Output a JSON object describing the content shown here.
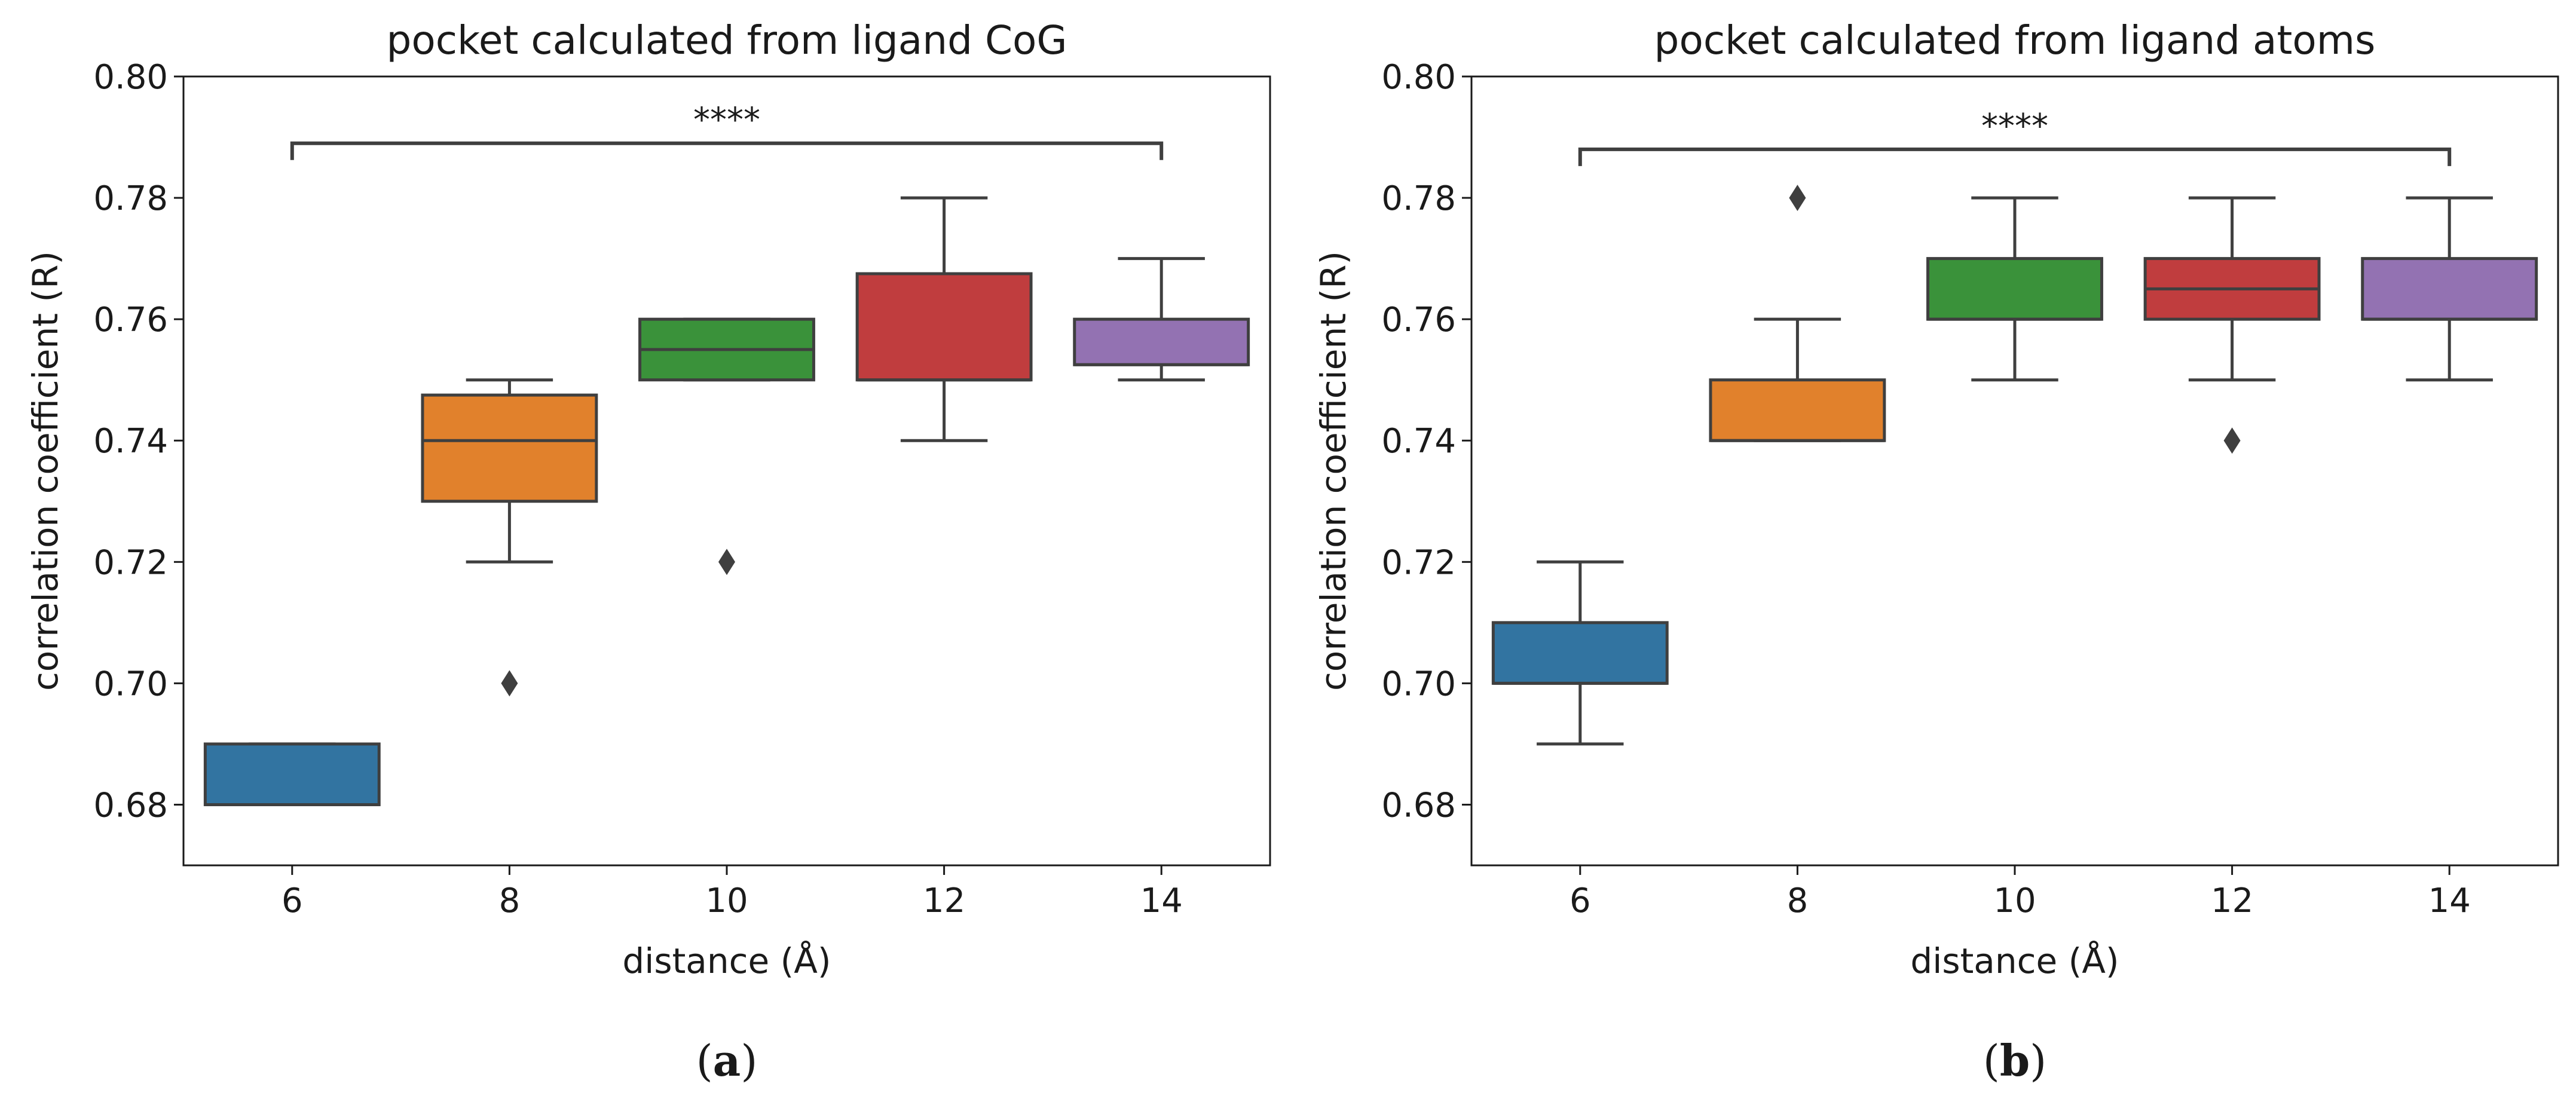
{
  "chart_data": [
    {
      "type": "box",
      "title": "pocket calculated from ligand CoG",
      "xlabel": "distance (Å)",
      "ylabel": "correlation coefficient (R)",
      "ylim": [
        0.67,
        0.8
      ],
      "yticks": [
        "0.68",
        "0.70",
        "0.72",
        "0.74",
        "0.76",
        "0.78",
        "0.80"
      ],
      "yticks_values": [
        0.68,
        0.7,
        0.72,
        0.74,
        0.76,
        0.78,
        0.8
      ],
      "categories": [
        "6",
        "8",
        "10",
        "12",
        "14"
      ],
      "boxes": [
        {
          "category": "6",
          "q1": 0.68,
          "median": 0.68,
          "q3": 0.69,
          "whisker_low": 0.68,
          "whisker_high": 0.69,
          "outliers": [],
          "color": "#3274a1"
        },
        {
          "category": "8",
          "q1": 0.73,
          "median": 0.74,
          "q3": 0.7475,
          "whisker_low": 0.72,
          "whisker_high": 0.75,
          "outliers": [
            0.7
          ],
          "color": "#e1812c"
        },
        {
          "category": "10",
          "q1": 0.75,
          "median": 0.755,
          "q3": 0.76,
          "whisker_low": 0.75,
          "whisker_high": 0.76,
          "outliers": [
            0.72
          ],
          "color": "#3a923a"
        },
        {
          "category": "12",
          "q1": 0.75,
          "median": 0.75,
          "q3": 0.7675,
          "whisker_low": 0.74,
          "whisker_high": 0.78,
          "outliers": [],
          "color": "#c03d3e"
        },
        {
          "category": "14",
          "q1": 0.7525,
          "median": 0.7525,
          "q3": 0.76,
          "whisker_low": 0.75,
          "whisker_high": 0.77,
          "outliers": [],
          "color": "#9372b2"
        }
      ],
      "significance": {
        "from": "6",
        "to": "14",
        "value": 0.789,
        "label": "****"
      },
      "caption": {
        "open": "(",
        "letter": "a",
        "close": ")"
      }
    },
    {
      "type": "box",
      "title": "pocket calculated from ligand atoms",
      "xlabel": "distance (Å)",
      "ylabel": "correlation coefficient (R)",
      "ylim": [
        0.67,
        0.8
      ],
      "yticks": [
        "0.68",
        "0.70",
        "0.72",
        "0.74",
        "0.76",
        "0.78",
        "0.80"
      ],
      "yticks_values": [
        0.68,
        0.7,
        0.72,
        0.74,
        0.76,
        0.78,
        0.8
      ],
      "categories": [
        "6",
        "8",
        "10",
        "12",
        "14"
      ],
      "boxes": [
        {
          "category": "6",
          "q1": 0.7,
          "median": 0.7,
          "q3": 0.71,
          "whisker_low": 0.69,
          "whisker_high": 0.72,
          "outliers": [],
          "color": "#3274a1"
        },
        {
          "category": "8",
          "q1": 0.74,
          "median": 0.74,
          "q3": 0.75,
          "whisker_low": 0.74,
          "whisker_high": 0.76,
          "outliers": [
            0.78
          ],
          "color": "#e1812c"
        },
        {
          "category": "10",
          "q1": 0.76,
          "median": 0.76,
          "q3": 0.77,
          "whisker_low": 0.75,
          "whisker_high": 0.78,
          "outliers": [],
          "color": "#3a923a"
        },
        {
          "category": "12",
          "q1": 0.76,
          "median": 0.765,
          "q3": 0.77,
          "whisker_low": 0.75,
          "whisker_high": 0.78,
          "outliers": [
            0.74
          ],
          "color": "#c03d3e"
        },
        {
          "category": "14",
          "q1": 0.76,
          "median": 0.76,
          "q3": 0.77,
          "whisker_low": 0.75,
          "whisker_high": 0.78,
          "outliers": [],
          "color": "#9372b2"
        }
      ],
      "significance": {
        "from": "6",
        "to": "14",
        "value": 0.788,
        "label": "****"
      },
      "caption": {
        "open": "(",
        "letter": "b",
        "close": ")"
      }
    }
  ]
}
